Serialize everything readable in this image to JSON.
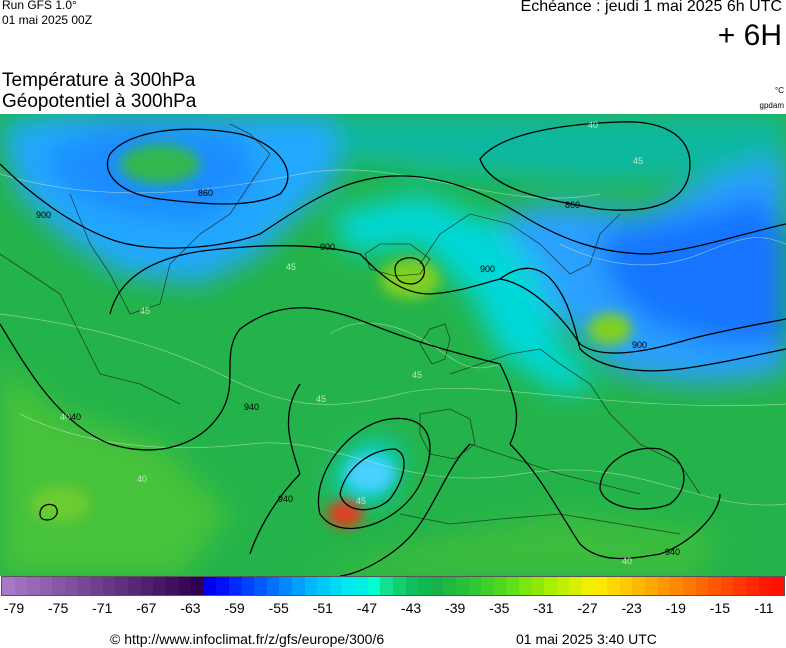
{
  "header": {
    "run_title": "Run GFS 1.0°",
    "run_date": "01 mai 2025 00Z",
    "echeance": "Echéance : jeudi 1 mai 2025 6h UTC",
    "lead_time": "+ 6H"
  },
  "titles": {
    "line1": "Température à 300hPa",
    "line2": "Géopotentiel à 300hPa",
    "unit_temp": "°C",
    "unit_geo": "gpdam"
  },
  "map": {
    "contour_labels": [
      "860",
      "900",
      "900",
      "900",
      "860",
      "900",
      "940",
      "940",
      "940",
      "940"
    ],
    "isotherm_labels": [
      "45",
      "40",
      "45",
      "45",
      "45",
      "45",
      "40",
      "40",
      "45",
      "40"
    ],
    "colors": {
      "land_green": "#22b24a",
      "cold_blue": "#1e90ff",
      "cyan": "#00d0e0",
      "warm_green": "#6fd000"
    }
  },
  "legend": {
    "colors": [
      "#a878c8",
      "#a070c0",
      "#9868b8",
      "#9060b0",
      "#8858a8",
      "#8050a0",
      "#784898",
      "#704090",
      "#683888",
      "#603080",
      "#582878",
      "#502070",
      "#481868",
      "#401060",
      "#380858",
      "#300050",
      "#0000f0",
      "#0010f8",
      "#0028ff",
      "#0040ff",
      "#0058ff",
      "#0070ff",
      "#0088ff",
      "#00a0ff",
      "#00b8ff",
      "#00c8ff",
      "#00d8f8",
      "#00e8f0",
      "#00f0e0",
      "#00ffd0",
      "#10e090",
      "#10d070",
      "#10c060",
      "#10b850",
      "#18b048",
      "#20b840",
      "#28c038",
      "#30c830",
      "#40d028",
      "#50d820",
      "#60e018",
      "#78e810",
      "#90e808",
      "#a8f000",
      "#c0f000",
      "#d8f000",
      "#f0f000",
      "#ffe800",
      "#ffd800",
      "#ffc800",
      "#ffb800",
      "#ffa800",
      "#ff9800",
      "#ff8800",
      "#ff7800",
      "#ff6800",
      "#ff5800",
      "#ff4800",
      "#ff3800",
      "#ff2800",
      "#ff1800",
      "#ff1000"
    ],
    "ticks": [
      "-79",
      "-75",
      "-71",
      "-67",
      "-63",
      "-59",
      "-55",
      "-51",
      "-47",
      "-43",
      "-39",
      "-35",
      "-31",
      "-27",
      "-23",
      "-19",
      "-15",
      "-11"
    ]
  },
  "footer": {
    "credit": "© http://www.infoclimat.fr/z/gfs/europe/300/6",
    "timestamp": "01 mai 2025  3:40 UTC"
  }
}
